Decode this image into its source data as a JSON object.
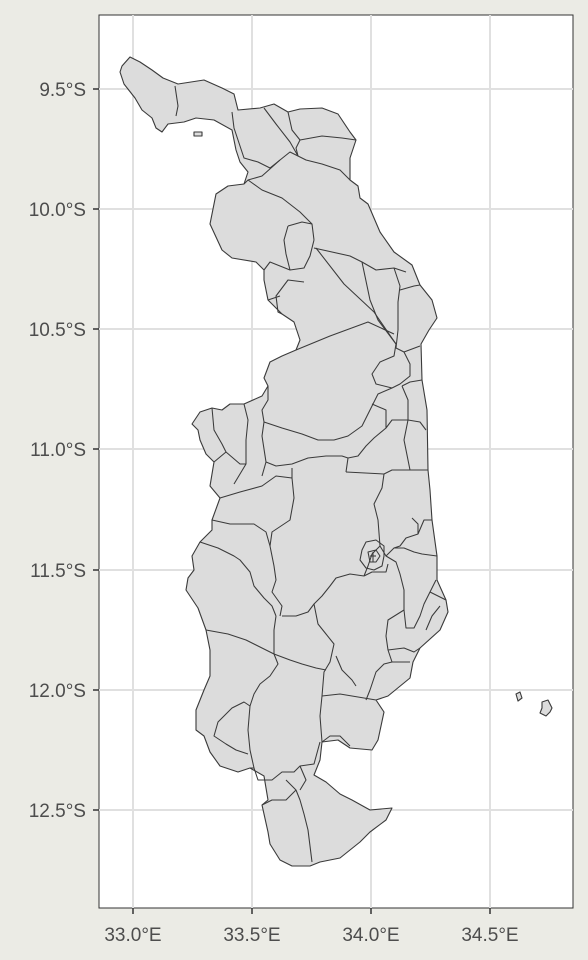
{
  "map": {
    "x_axis": {
      "tick_labels": [
        "33.0°E",
        "33.5°E",
        "34.0°E",
        "34.5°E"
      ],
      "tick_values": [
        33.0,
        33.5,
        34.0,
        34.5
      ],
      "range": [
        32.86,
        34.97
      ]
    },
    "y_axis": {
      "tick_labels": [
        "9.5°S",
        "10.0°S",
        "10.5°S",
        "11.0°S",
        "11.5°S",
        "12.0°S",
        "12.5°S"
      ],
      "tick_values": [
        -9.5,
        -10.0,
        -10.5,
        -11.0,
        -11.5,
        -12.0,
        -12.5
      ],
      "range": [
        -12.88,
        -9.2
      ]
    },
    "colors": {
      "background": "#ebebe5",
      "panel": "#ffffff",
      "grid": "#e0e0e0",
      "region_fill": "#dcdcdc",
      "region_border": "#3a3a3a"
    },
    "grid": true
  }
}
